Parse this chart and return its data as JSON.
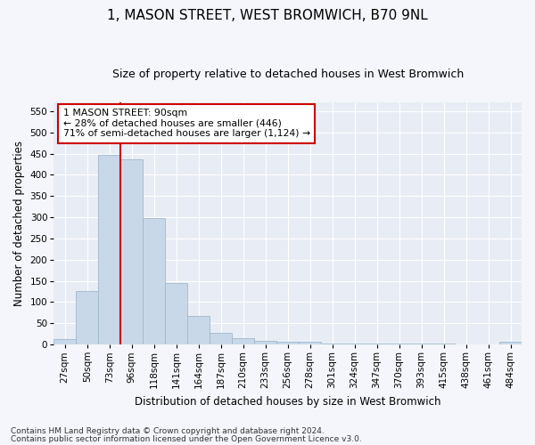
{
  "title": "1, MASON STREET, WEST BROMWICH, B70 9NL",
  "subtitle": "Size of property relative to detached houses in West Bromwich",
  "xlabel": "Distribution of detached houses by size in West Bromwich",
  "ylabel": "Number of detached properties",
  "categories": [
    "27sqm",
    "50sqm",
    "73sqm",
    "96sqm",
    "118sqm",
    "141sqm",
    "164sqm",
    "187sqm",
    "210sqm",
    "233sqm",
    "256sqm",
    "278sqm",
    "301sqm",
    "324sqm",
    "347sqm",
    "370sqm",
    "393sqm",
    "415sqm",
    "438sqm",
    "461sqm",
    "484sqm"
  ],
  "values": [
    13,
    127,
    447,
    437,
    297,
    145,
    68,
    27,
    14,
    8,
    6,
    6,
    3,
    2,
    2,
    2,
    2,
    2,
    1,
    1,
    6
  ],
  "bar_color": "#c8d8e8",
  "bar_edge_color": "#a0b8cc",
  "vline_color": "#cc0000",
  "annotation_text": "1 MASON STREET: 90sqm\n← 28% of detached houses are smaller (446)\n71% of semi-detached houses are larger (1,124) →",
  "annotation_box_color": "#ffffff",
  "annotation_box_edge": "#cc0000",
  "footnote1": "Contains HM Land Registry data © Crown copyright and database right 2024.",
  "footnote2": "Contains public sector information licensed under the Open Government Licence v3.0.",
  "ylim": [
    0,
    570
  ],
  "yticks": [
    0,
    50,
    100,
    150,
    200,
    250,
    300,
    350,
    400,
    450,
    500,
    550
  ],
  "fig_bg": "#f4f6fb",
  "ax_bg": "#e8edf5",
  "grid_color": "#ffffff",
  "title_fontsize": 11,
  "subtitle_fontsize": 9,
  "tick_fontsize": 7.5,
  "ylabel_fontsize": 8.5,
  "xlabel_fontsize": 8.5,
  "annotation_fontsize": 7.8,
  "footnote_fontsize": 6.5
}
